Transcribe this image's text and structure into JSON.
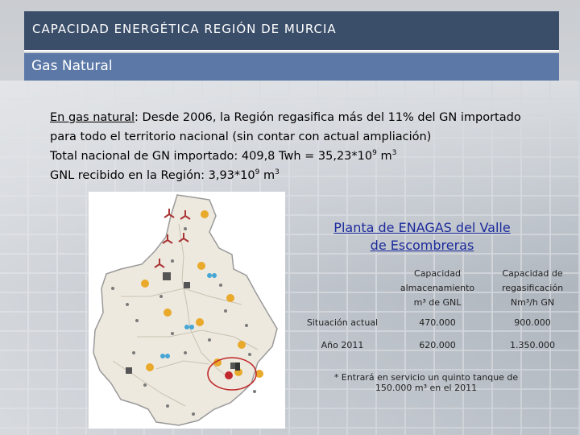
{
  "header": {
    "title": "CAPACIDAD ENERGÉTICA REGIÓN DE MURCIA",
    "subtitle": "Gas Natural"
  },
  "intro": {
    "lead_link": "En gas natural",
    "lead_rest": ": Desde 2006, la Región regasifica más del 11% del GN importado para todo el territorio nacional (sin contar con actual ampliación)",
    "line2_prefix": "Total nacional de GN importado: 409,8 Twh = 35,23*10",
    "line2_exp": "9",
    "line2_suffix": " m",
    "line2_unit_exp": "3",
    "line3_prefix": "GNL recibido en la Región: 3,93*10",
    "line3_exp": "9",
    "line3_suffix": " m",
    "line3_unit_exp": "3"
  },
  "plant": {
    "title_line1": "Planta de ENAGAS del Valle",
    "title_line2": "de Escombreras"
  },
  "table": {
    "col1_line1": "Capacidad",
    "col1_line2": "almacenamiento",
    "col1_line3": "m³ de GNL",
    "col2_line1": "Capacidad de",
    "col2_line2": "regasificación",
    "col2_line3": "Nm³/h GN",
    "rows": [
      {
        "label": "Situación actual",
        "storage": "470.000",
        "regas": "900.000"
      },
      {
        "label": "Año 2011",
        "storage": "620.000",
        "regas": "1.350.000"
      }
    ]
  },
  "footnote": {
    "line1": "* Entrará en servicio un quinto tanque de",
    "line2": "150.000 m³ en el 2011"
  },
  "colors": {
    "title_bar": "#3a4d69",
    "subtitle_bar": "#5b78a6",
    "plant_title": "#1c2a9c",
    "map_fill": "#eee9df",
    "highlight_circle": "#c0282b"
  },
  "icons": [
    "wind-turbine-icon",
    "sun-icon",
    "gas-plant-icon",
    "water-icon",
    "town-marker-icon"
  ]
}
